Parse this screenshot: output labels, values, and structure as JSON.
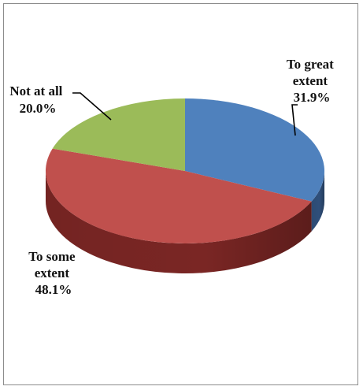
{
  "chart_data": {
    "type": "pie",
    "style": "3d",
    "title": "",
    "categories": [
      "To great extent",
      "To some extent",
      "Not at all"
    ],
    "values": [
      31.9,
      48.1,
      20.0
    ],
    "slices": [
      {
        "label_lines": [
          "To great",
          "extent"
        ],
        "percent_text": "31.9%",
        "value": 31.9,
        "color": "#4f81bd",
        "side_color": "#2f4f7a"
      },
      {
        "label_lines": [
          "To some",
          "extent"
        ],
        "percent_text": "48.1%",
        "value": 48.1,
        "color": "#c0504d",
        "side_color": "#7a2624"
      },
      {
        "label_lines": [
          "Not at all"
        ],
        "percent_text": "20.0%",
        "value": 20.0,
        "color": "#9bbb59",
        "side_color": "#5f7a2c"
      }
    ],
    "legend": "none",
    "data_labels": "outside-with-leader-lines"
  }
}
